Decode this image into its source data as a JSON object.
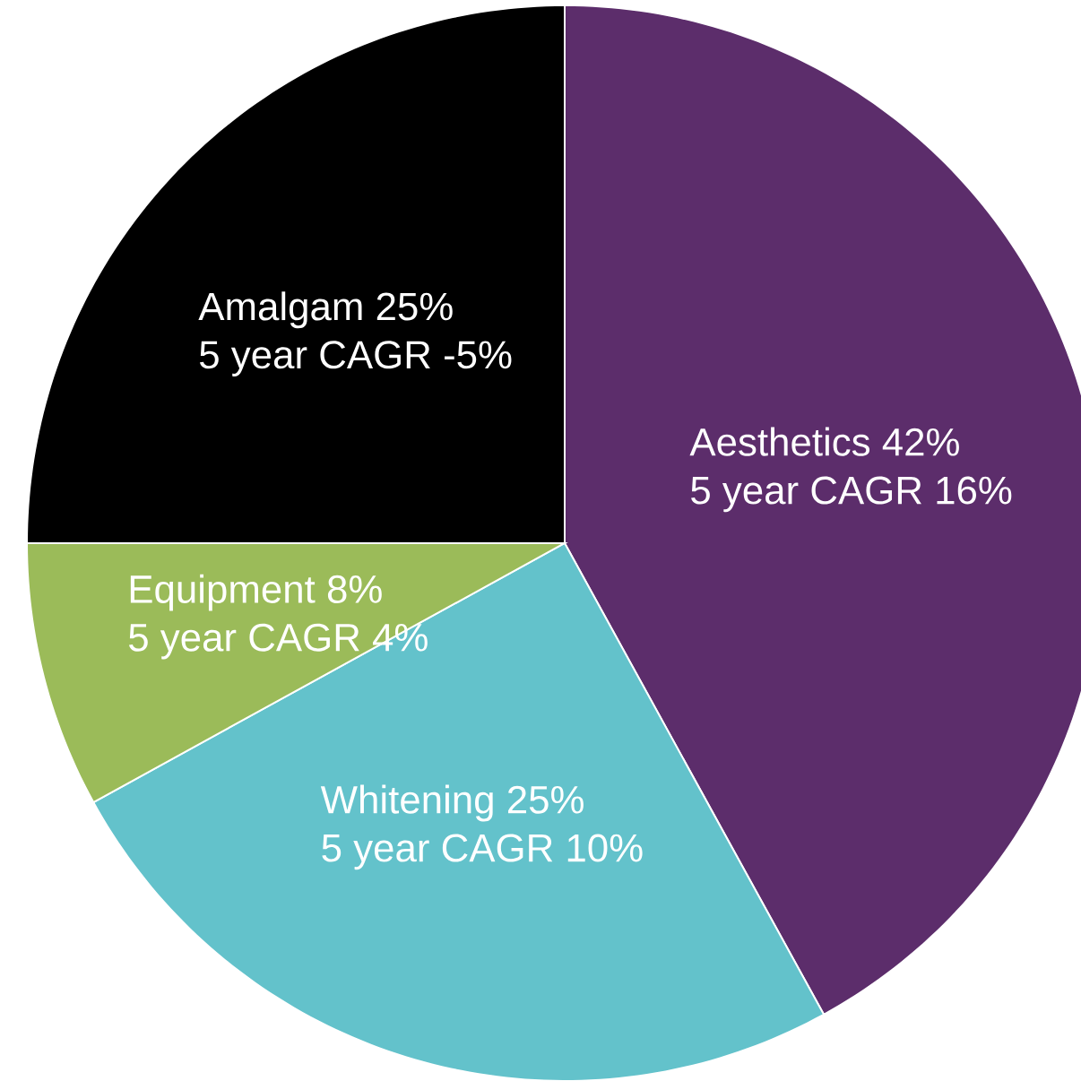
{
  "chart_data": {
    "type": "pie",
    "categories": [
      "Aesthetics",
      "Whitening",
      "Equipment",
      "Amalgam"
    ],
    "values": [
      42,
      25,
      8,
      25
    ],
    "value_labels": [
      "42%",
      "25%",
      "8%",
      "25%"
    ],
    "colors": [
      "#5c2d6b",
      "#63c2cb",
      "#9bbb59",
      "#000000"
    ],
    "annotations": [
      "5 year CAGR 16%",
      "5 year CAGR 10%",
      "5 year CAGR 4%",
      "5 year CAGR -5%"
    ]
  }
}
